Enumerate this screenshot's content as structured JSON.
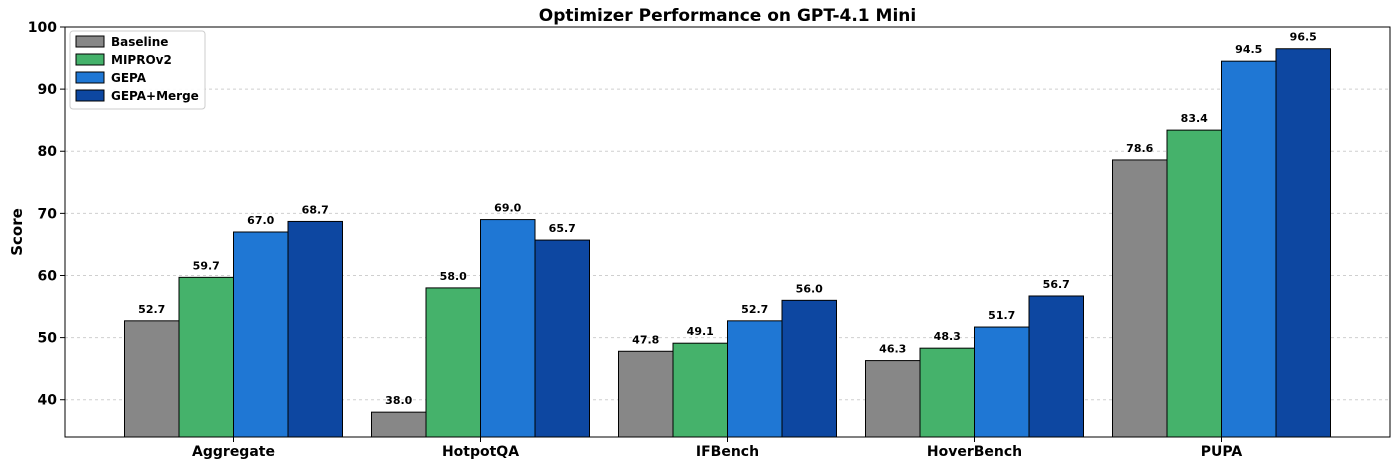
{
  "chart_data": {
    "type": "bar",
    "title": "Optimizer Performance on GPT-4.1 Mini",
    "xlabel": "",
    "ylabel": "Score",
    "ylim": [
      34,
      100
    ],
    "yticks": [
      40,
      50,
      60,
      70,
      80,
      90,
      100
    ],
    "grid": true,
    "legend_position": "top-left",
    "categories": [
      "Aggregate",
      "HotpotQA",
      "IFBench",
      "HoverBench",
      "PUPA"
    ],
    "series": [
      {
        "name": "Baseline",
        "color": "#878787",
        "values": [
          52.7,
          38.0,
          47.8,
          46.3,
          78.6
        ],
        "labels": [
          "52.7",
          "38.0",
          "47.8",
          "46.3",
          "78.6"
        ]
      },
      {
        "name": "MIPROv2",
        "color": "#45b26b",
        "values": [
          59.7,
          58.0,
          49.1,
          48.3,
          83.4
        ],
        "labels": [
          "59.7",
          "58.0",
          "49.1",
          "48.3",
          "83.4"
        ]
      },
      {
        "name": "GEPA",
        "color": "#1f77d4",
        "values": [
          67.0,
          69.0,
          52.7,
          51.7,
          94.5
        ],
        "labels": [
          "67.0",
          "69.0",
          "52.7",
          "51.7",
          "94.5"
        ]
      },
      {
        "name": "GEPA+Merge",
        "color": "#0d47a1",
        "values": [
          68.7,
          65.7,
          56.0,
          56.7,
          96.5
        ],
        "labels": [
          "68.7",
          "65.7",
          "56.0",
          "56.7",
          "96.5"
        ]
      }
    ]
  }
}
